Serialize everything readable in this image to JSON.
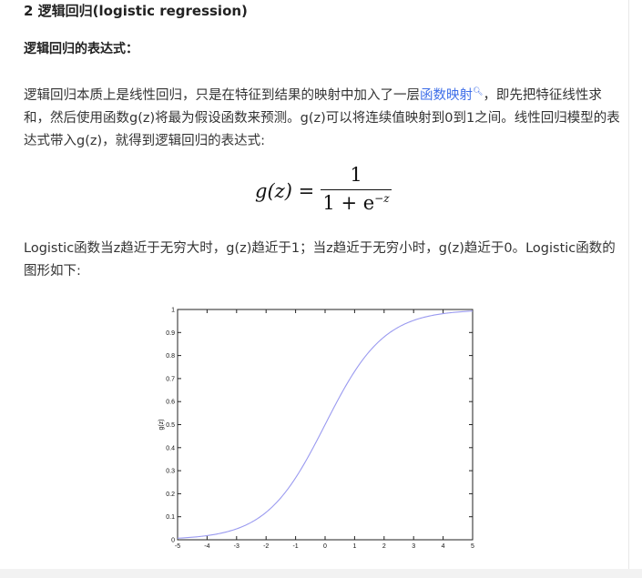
{
  "article": {
    "heading": "2 逻辑回归(logistic regression)",
    "subheading": "逻辑回归的表达式：",
    "para1_before_link": "逻辑回归本质上是线性回归，只是在特征到结果的映射中加入了一层",
    "para1_link": "函数映射",
    "para1_link_icon": "search-icon",
    "para1_after_link": "，即先把特征线性求和，然后使用函数g(z)将最为假设函数来预测。g(z)可以将连续值映射到0到1之间。线性回归模型的表达式带入g(z)，就得到逻辑回归的表达式:",
    "formula": {
      "lhs": "g(z) =",
      "numerator": "1",
      "denominator": "1 + e",
      "exponent": "−z"
    },
    "para2": "Logistic函数当z趋近于无穷大时，g(z)趋近于1；当z趋近于无穷小时，g(z)趋近于0。Logistic函数的图形如下:",
    "link_color": "#3e6ee8"
  },
  "chart_data": {
    "type": "line",
    "function": "g(z) = 1/(1+e^-z)",
    "title": "",
    "xlabel": "",
    "ylabel": "g(z)",
    "xlim": [
      -5,
      5
    ],
    "ylim": [
      0,
      1
    ],
    "xticks": [
      "-5",
      "-4",
      "-3",
      "-2",
      "-1",
      "0",
      "1",
      "2",
      "3",
      "4",
      "5"
    ],
    "yticks": [
      "0",
      "0.1",
      "0.2",
      "0.3",
      "0.4",
      "0.5",
      "0.6",
      "0.7",
      "0.8",
      "0.9",
      "1"
    ],
    "grid": false,
    "series": [
      {
        "color": "#9a9af0",
        "x": [
          -5,
          -4,
          -3,
          -2,
          -1,
          0,
          1,
          2,
          3,
          4,
          5
        ],
        "y": [
          0.0067,
          0.018,
          0.047,
          0.119,
          0.269,
          0.5,
          0.731,
          0.881,
          0.953,
          0.982,
          0.9933
        ]
      }
    ]
  }
}
